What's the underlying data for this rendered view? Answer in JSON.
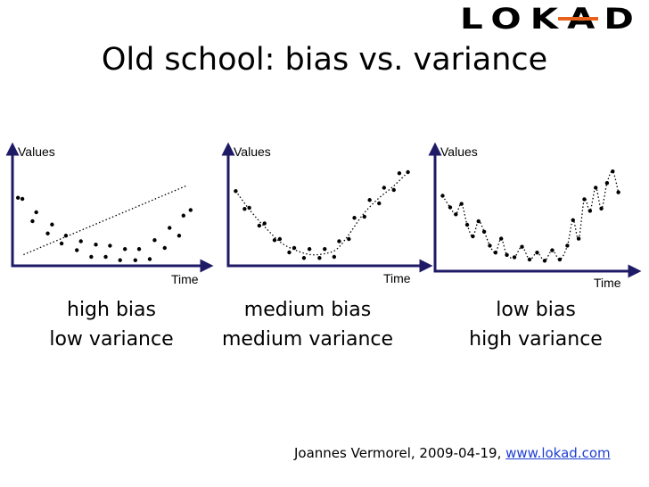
{
  "logo": {
    "text": "LOKAD",
    "accent_color": "#e8611a"
  },
  "title": "Old school: bias vs. variance",
  "footer": {
    "author": "Joannes Vermorel, 2009-04-19, ",
    "link": "www.lokad.com"
  },
  "colors": {
    "axis": "#1f1a66",
    "points": "#000000"
  },
  "chart_data": [
    {
      "type": "scatter",
      "ylabel": "Values",
      "xlabel": "Time",
      "fit": "linear",
      "xlim": [
        0,
        100
      ],
      "ylim": [
        0,
        100
      ],
      "caption": [
        "high bias",
        "low variance"
      ],
      "points": [
        [
          3,
          61
        ],
        [
          6,
          52
        ],
        [
          10,
          47
        ],
        [
          14,
          42
        ],
        [
          18,
          35
        ],
        [
          22,
          30
        ],
        [
          26,
          25
        ],
        [
          30,
          23
        ],
        [
          34,
          20
        ],
        [
          38,
          17
        ],
        [
          42,
          15
        ],
        [
          46,
          13
        ],
        [
          50,
          12
        ],
        [
          54,
          11
        ],
        [
          58,
          10
        ],
        [
          62,
          9
        ],
        [
          66,
          9
        ],
        [
          70,
          10
        ],
        [
          74,
          12
        ],
        [
          78,
          16
        ],
        [
          82,
          21
        ],
        [
          86,
          28
        ],
        [
          90,
          34
        ],
        [
          94,
          41
        ],
        [
          97,
          50
        ]
      ],
      "noise": [
        [
          0,
          0
        ],
        [
          -4,
          8
        ],
        [
          6,
          -7
        ],
        [
          -7,
          6
        ],
        [
          8,
          -6
        ],
        [
          -3,
          7
        ],
        [
          5,
          -5
        ],
        [
          -6,
          4
        ],
        [
          7,
          -6
        ],
        [
          -5,
          5
        ],
        [
          6,
          -7
        ],
        [
          -4,
          6
        ],
        [
          5,
          -4
        ],
        [
          -6,
          7
        ],
        [
          4,
          -5
        ],
        [
          -5,
          6
        ],
        [
          6,
          -4
        ],
        [
          -7,
          5
        ],
        [
          5,
          -6
        ],
        [
          -4,
          7
        ],
        [
          6,
          -5
        ],
        [
          -3,
          6
        ],
        [
          5,
          -7
        ],
        [
          -6,
          4
        ],
        [
          0,
          0
        ]
      ],
      "fit_line": [
        [
          6,
          10
        ],
        [
          95,
          72
        ]
      ]
    },
    {
      "type": "scatter",
      "ylabel": "Values",
      "xlabel": "Time",
      "fit": "smooth",
      "xlim": [
        0,
        100
      ],
      "ylim": [
        0,
        100
      ],
      "caption": [
        "medium bias",
        "medium variance"
      ],
      "points": [
        [
          4,
          67
        ],
        [
          8,
          55
        ],
        [
          12,
          48
        ],
        [
          16,
          41
        ],
        [
          20,
          33
        ],
        [
          24,
          26
        ],
        [
          28,
          20
        ],
        [
          32,
          16
        ],
        [
          36,
          13
        ],
        [
          40,
          11
        ],
        [
          44,
          10
        ],
        [
          48,
          10
        ],
        [
          52,
          11
        ],
        [
          56,
          13
        ],
        [
          60,
          18
        ],
        [
          64,
          27
        ],
        [
          68,
          38
        ],
        [
          72,
          48
        ],
        [
          76,
          56
        ],
        [
          80,
          61
        ],
        [
          84,
          66
        ],
        [
          88,
          71
        ],
        [
          92,
          79
        ],
        [
          96,
          84
        ]
      ],
      "noise": [
        [
          0,
          0
        ],
        [
          5,
          -4
        ],
        [
          -5,
          4
        ],
        [
          4,
          -5
        ],
        [
          -4,
          5
        ],
        [
          5,
          -3
        ],
        [
          -3,
          4
        ],
        [
          4,
          -4
        ],
        [
          -5,
          3
        ],
        [
          3,
          -4
        ],
        [
          -4,
          5
        ],
        [
          5,
          -3
        ],
        [
          -3,
          4
        ],
        [
          4,
          -5
        ],
        [
          -5,
          4
        ],
        [
          3,
          -3
        ],
        [
          -4,
          5
        ],
        [
          5,
          -4
        ],
        [
          -3,
          3
        ],
        [
          4,
          -5
        ],
        [
          -5,
          4
        ],
        [
          3,
          -3
        ],
        [
          -4,
          4
        ],
        [
          0,
          0
        ]
      ],
      "fit_curve": [
        [
          4,
          67
        ],
        [
          12,
          49
        ],
        [
          20,
          34
        ],
        [
          28,
          21
        ],
        [
          36,
          14
        ],
        [
          44,
          10
        ],
        [
          52,
          11
        ],
        [
          58,
          15
        ],
        [
          64,
          27
        ],
        [
          72,
          46
        ],
        [
          80,
          60
        ],
        [
          88,
          71
        ],
        [
          96,
          84
        ]
      ]
    },
    {
      "type": "scatter",
      "ylabel": "Values",
      "xlabel": "Time",
      "fit": "overfit",
      "xlim": [
        0,
        100
      ],
      "ylim": [
        0,
        100
      ],
      "caption": [
        "low bias",
        "high variance"
      ],
      "points": [
        [
          4,
          65
        ],
        [
          8,
          55
        ],
        [
          11,
          49
        ],
        [
          14,
          58
        ],
        [
          17,
          40
        ],
        [
          20,
          30
        ],
        [
          23,
          43
        ],
        [
          26,
          34
        ],
        [
          29,
          22
        ],
        [
          32,
          16
        ],
        [
          35,
          28
        ],
        [
          38,
          14
        ],
        [
          42,
          12
        ],
        [
          46,
          21
        ],
        [
          50,
          10
        ],
        [
          54,
          16
        ],
        [
          58,
          9
        ],
        [
          62,
          18
        ],
        [
          66,
          10
        ],
        [
          70,
          22
        ],
        [
          73,
          44
        ],
        [
          76,
          28
        ],
        [
          79,
          62
        ],
        [
          82,
          52
        ],
        [
          85,
          72
        ],
        [
          88,
          54
        ],
        [
          91,
          76
        ],
        [
          94,
          86
        ],
        [
          97,
          68
        ]
      ],
      "noise": []
    }
  ]
}
